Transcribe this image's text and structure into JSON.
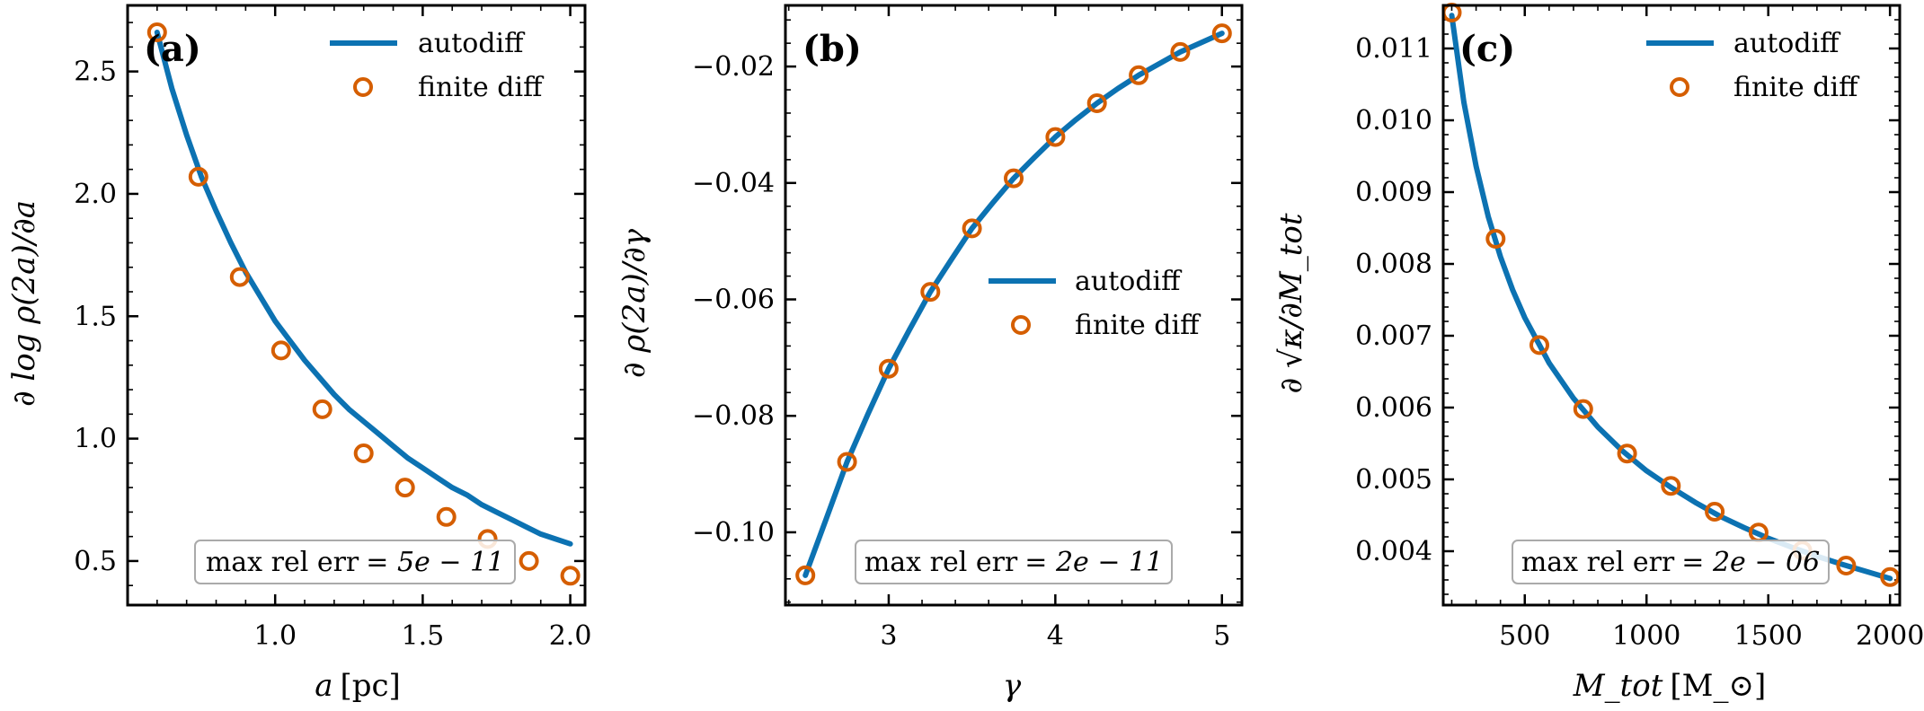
{
  "colors": {
    "line": "#0C72B2",
    "marker": "#D55E00",
    "axis": "#000000",
    "note_border": "#AAAAAA"
  },
  "chart_data": [
    {
      "type": "line",
      "panel_label": "(a)",
      "xlabel": "a",
      "xunit": "[pc]",
      "ylabel": "∂ log ρ(2a)/∂a",
      "xlim": [
        0.5,
        2.05
      ],
      "ylim": [
        0.32,
        2.77
      ],
      "xticks": [
        1.0,
        1.5,
        2.0
      ],
      "xtick_labels": [
        "1.0",
        "1.5",
        "2.0"
      ],
      "yticks": [
        0.5,
        1.0,
        1.5,
        2.0,
        2.5
      ],
      "ytick_labels": [
        "0.5",
        "1.0",
        "1.5",
        "2.0",
        "2.5"
      ],
      "series": [
        {
          "name": "autodiff",
          "style": "line",
          "x": [
            0.6,
            0.65,
            0.7,
            0.75,
            0.8,
            0.85,
            0.9,
            0.95,
            1.0,
            1.05,
            1.1,
            1.15,
            1.2,
            1.25,
            1.3,
            1.35,
            1.4,
            1.45,
            1.5,
            1.55,
            1.6,
            1.65,
            1.7,
            1.75,
            1.8,
            1.85,
            1.9,
            1.95,
            2.0
          ],
          "y": [
            2.66,
            2.43,
            2.24,
            2.07,
            1.93,
            1.8,
            1.68,
            1.58,
            1.48,
            1.4,
            1.32,
            1.25,
            1.18,
            1.12,
            1.07,
            1.02,
            0.97,
            0.92,
            0.88,
            0.84,
            0.8,
            0.77,
            0.73,
            0.7,
            0.67,
            0.64,
            0.61,
            0.59,
            0.57
          ]
        },
        {
          "name": "finite diff",
          "style": "markers",
          "x": [
            0.6,
            0.74,
            0.88,
            1.02,
            1.16,
            1.3,
            1.44,
            1.58,
            1.72,
            1.86,
            2.0
          ],
          "y": [
            2.66,
            2.07,
            1.66,
            1.36,
            1.12,
            0.94,
            0.8,
            0.68,
            0.59,
            0.5,
            0.44
          ]
        }
      ],
      "legend": {
        "placement": "top-right",
        "entries": [
          "autodiff",
          "finite diff"
        ]
      },
      "annotation": {
        "label": "max rel err",
        "value": "= 5e − 11",
        "placement": "bottom"
      }
    },
    {
      "type": "line",
      "panel_label": "(b)",
      "xlabel": "γ",
      "xunit": "",
      "ylabel": "∂ ρ(2a)/∂γ",
      "xlim": [
        2.38,
        5.12
      ],
      "ylim": [
        -0.1125,
        -0.0095
      ],
      "xticks": [
        3,
        4,
        5
      ],
      "xtick_labels": [
        "3",
        "4",
        "5"
      ],
      "yticks": [
        -0.1,
        -0.08,
        -0.06,
        -0.04,
        -0.02
      ],
      "ytick_labels": [
        "−0.10",
        "−0.08",
        "−0.06",
        "−0.04",
        "−0.02"
      ],
      "series": [
        {
          "name": "autodiff",
          "style": "line",
          "x": [
            2.5,
            2.625,
            2.75,
            2.875,
            3.0,
            3.125,
            3.25,
            3.375,
            3.5,
            3.625,
            3.75,
            3.875,
            4.0,
            4.125,
            4.25,
            4.375,
            4.5,
            4.625,
            4.75,
            4.875,
            5.0
          ],
          "y": [
            -0.1074,
            -0.0977,
            -0.0879,
            -0.0797,
            -0.0719,
            -0.0652,
            -0.0587,
            -0.0532,
            -0.0478,
            -0.0434,
            -0.0392,
            -0.0356,
            -0.0321,
            -0.0291,
            -0.0263,
            -0.0238,
            -0.0215,
            -0.0195,
            -0.0175,
            -0.0159,
            -0.0143
          ]
        },
        {
          "name": "finite diff",
          "style": "markers",
          "x": [
            2.5,
            2.75,
            3.0,
            3.25,
            3.5,
            3.75,
            4.0,
            4.25,
            4.5,
            4.75,
            5.0
          ],
          "y": [
            -0.1074,
            -0.0879,
            -0.0719,
            -0.0587,
            -0.0478,
            -0.0392,
            -0.0321,
            -0.0263,
            -0.0215,
            -0.0175,
            -0.0143
          ]
        }
      ],
      "legend": {
        "placement": "center-right",
        "entries": [
          "autodiff",
          "finite diff"
        ]
      },
      "annotation": {
        "label": "max rel err",
        "value": "= 2e − 11",
        "placement": "bottom"
      }
    },
    {
      "type": "line",
      "panel_label": "(c)",
      "xlabel": "M_tot",
      "xunit": "[M_⊙]",
      "ylabel": "∂ √κ/∂M_tot",
      "xlim": [
        165,
        2040
      ],
      "ylim": [
        0.00325,
        0.0116
      ],
      "xticks": [
        500,
        1000,
        1500,
        2000
      ],
      "xtick_labels": [
        "500",
        "1000",
        "1500",
        "2000"
      ],
      "yticks": [
        0.004,
        0.005,
        0.006,
        0.007,
        0.008,
        0.009,
        0.01,
        0.011
      ],
      "ytick_labels": [
        "0.004",
        "0.005",
        "0.006",
        "0.007",
        "0.008",
        "0.009",
        "0.010",
        "0.011"
      ],
      "series": [
        {
          "name": "autodiff",
          "style": "line",
          "x": [
            200,
            250,
            300,
            350,
            400,
            450,
            500,
            600,
            700,
            800,
            900,
            1000,
            1100,
            1200,
            1300,
            1400,
            1500,
            1600,
            1700,
            1800,
            1900,
            2000
          ],
          "y": [
            0.01146,
            0.01025,
            0.00936,
            0.00866,
            0.0081,
            0.00764,
            0.00725,
            0.00662,
            0.00613,
            0.00573,
            0.0054,
            0.00512,
            0.00489,
            0.00468,
            0.00449,
            0.00433,
            0.00418,
            0.00405,
            0.00393,
            0.00382,
            0.00372,
            0.00362
          ]
        },
        {
          "name": "finite diff",
          "style": "markers",
          "x": [
            200,
            380,
            560,
            740,
            920,
            1100,
            1280,
            1460,
            1640,
            1820,
            2000
          ],
          "y": [
            0.0115,
            0.00835,
            0.00687,
            0.00598,
            0.00536,
            0.00491,
            0.00455,
            0.00426,
            0.00401,
            0.0038,
            0.00364
          ]
        }
      ],
      "legend": {
        "placement": "top-right",
        "entries": [
          "autodiff",
          "finite diff"
        ]
      },
      "annotation": {
        "label": "max rel err",
        "value": "= 2e − 06",
        "placement": "bottom"
      }
    }
  ]
}
